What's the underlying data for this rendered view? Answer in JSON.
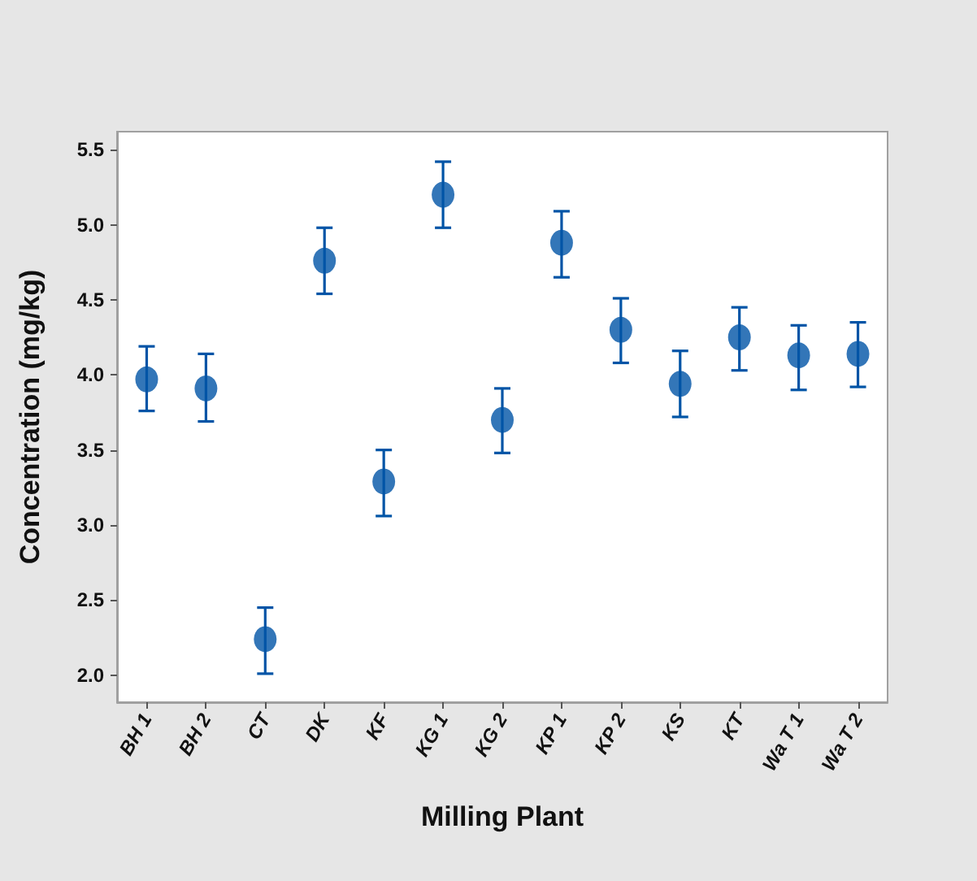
{
  "chart_data": {
    "type": "scatter",
    "xlabel": "Milling Plant",
    "ylabel": "Concentration (mg/kg)",
    "categories": [
      "BH 1",
      "BH 2",
      "CT",
      "DK",
      "KF",
      "KG 1",
      "KG 2",
      "KP 1",
      "KP 2",
      "KS",
      "KT",
      "Wa T 1",
      "Wa T 2"
    ],
    "series": [
      {
        "color": "#0054a6",
        "values": [
          3.97,
          3.91,
          2.24,
          4.76,
          3.29,
          5.2,
          3.7,
          4.88,
          4.3,
          3.94,
          4.25,
          4.13,
          4.14
        ],
        "errors": [
          [
            3.76,
            4.19
          ],
          [
            3.69,
            4.14
          ],
          [
            2.01,
            2.45
          ],
          [
            4.54,
            4.98
          ],
          [
            3.06,
            3.5
          ],
          [
            4.98,
            5.42
          ],
          [
            3.48,
            3.91
          ],
          [
            4.65,
            5.09
          ],
          [
            4.08,
            4.51
          ],
          [
            3.72,
            4.16
          ],
          [
            4.03,
            4.45
          ],
          [
            3.9,
            4.33
          ],
          [
            3.92,
            4.35
          ]
        ]
      }
    ],
    "ylim": [
      1.82,
      5.62
    ],
    "yticks": [
      {
        "value": 2,
        "label": "2.0"
      },
      {
        "value": 2.5,
        "label": "2.5"
      },
      {
        "value": 3,
        "label": "3.0"
      },
      {
        "value": 3.5,
        "label": "3.5"
      },
      {
        "value": 4,
        "label": "4.0"
      },
      {
        "value": 4.5,
        "label": "4.5"
      },
      {
        "value": 5,
        "label": "5.0"
      },
      {
        "value": 5.5,
        "label": "5.5"
      }
    ],
    "grid": false,
    "marker": "circle"
  }
}
